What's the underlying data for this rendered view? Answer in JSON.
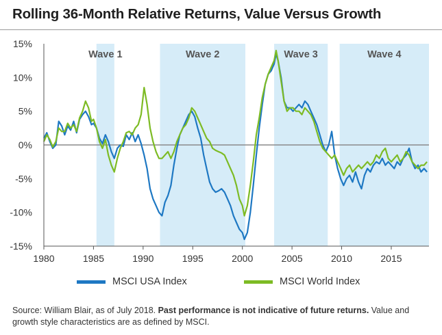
{
  "title": "Rolling 36-Month Relative Returns, Value Versus Growth",
  "source": {
    "prefix": "Source: William Blair, as of July 2018. ",
    "bold": "Past performance is not indicative of future returns.",
    "suffix": " Value and growth style characteristics are as defined by MSCI."
  },
  "colors": {
    "usa": "#1e78c3",
    "world": "#7dbb24",
    "wave_band": "#d6ecf8",
    "zero_line": "#8a8a8a"
  },
  "chart_data": {
    "type": "line",
    "title": "Rolling 36-Month Relative Returns, Value Versus Growth",
    "xlabel": "",
    "ylabel": "",
    "xlim": [
      1980,
      2018.8
    ],
    "ylim": [
      -15,
      15
    ],
    "x_ticks": [
      1980,
      1985,
      1990,
      1995,
      2000,
      2005,
      2010,
      2015
    ],
    "y_ticks": [
      {
        "value": 15,
        "label": "15%"
      },
      {
        "value": 10,
        "label": "10%"
      },
      {
        "value": 5,
        "label": "5%"
      },
      {
        "value": 0,
        "label": "0%"
      },
      {
        "value": -5,
        "label": "-5%"
      },
      {
        "value": -10,
        "label": "-10%"
      },
      {
        "value": -15,
        "label": "-15%"
      }
    ],
    "grid": false,
    "legend_position": "bottom",
    "waves": [
      {
        "label": "Wave 1",
        "start": 1985.3,
        "end": 1987.1
      },
      {
        "label": "Wave 2",
        "start": 1991.7,
        "end": 2000.3
      },
      {
        "label": "Wave 3",
        "start": 2003.2,
        "end": 2008.6
      },
      {
        "label": "Wave 4",
        "start": 2009.8,
        "end": 2018.8
      }
    ],
    "series": [
      {
        "name": "MSCI USA Index",
        "x": [
          1980.0,
          1980.3,
          1980.6,
          1980.9,
          1981.2,
          1981.5,
          1981.8,
          1982.1,
          1982.4,
          1982.7,
          1983.0,
          1983.3,
          1983.6,
          1983.9,
          1984.2,
          1984.5,
          1984.8,
          1985.0,
          1985.3,
          1985.6,
          1985.9,
          1986.2,
          1986.5,
          1986.8,
          1987.1,
          1987.4,
          1987.7,
          1988.0,
          1988.3,
          1988.6,
          1988.9,
          1989.2,
          1989.5,
          1989.8,
          1990.1,
          1990.4,
          1990.7,
          1991.0,
          1991.3,
          1991.6,
          1991.9,
          1992.2,
          1992.5,
          1992.8,
          1993.1,
          1993.4,
          1993.7,
          1994.0,
          1994.3,
          1994.6,
          1994.9,
          1995.2,
          1995.5,
          1995.8,
          1996.1,
          1996.4,
          1996.7,
          1997.0,
          1997.3,
          1997.6,
          1997.9,
          1998.2,
          1998.5,
          1998.8,
          1999.1,
          1999.4,
          1999.7,
          2000.0,
          2000.2,
          2000.5,
          2000.8,
          2001.1,
          2001.4,
          2001.7,
          2002.0,
          2002.3,
          2002.6,
          2002.9,
          2003.2,
          2003.4,
          2003.6,
          2003.9,
          2004.2,
          2004.5,
          2004.8,
          2005.1,
          2005.4,
          2005.7,
          2006.0,
          2006.3,
          2006.6,
          2006.9,
          2007.2,
          2007.5,
          2007.8,
          2008.1,
          2008.4,
          2008.7,
          2009.0,
          2009.3,
          2009.6,
          2009.9,
          2010.2,
          2010.5,
          2010.8,
          2011.1,
          2011.4,
          2011.7,
          2012.0,
          2012.3,
          2012.6,
          2012.9,
          2013.2,
          2013.5,
          2013.8,
          2014.1,
          2014.4,
          2014.7,
          2015.0,
          2015.3,
          2015.6,
          2015.9,
          2016.2,
          2016.5,
          2016.8,
          2017.1,
          2017.4,
          2017.7,
          2018.0,
          2018.3,
          2018.6
        ],
        "values": [
          1.0,
          1.8,
          0.5,
          -0.5,
          0.0,
          3.5,
          2.8,
          1.5,
          2.8,
          2.2,
          3.5,
          1.8,
          3.8,
          4.5,
          5.0,
          4.2,
          3.0,
          3.2,
          2.5,
          1.0,
          0.2,
          1.5,
          0.5,
          -1.0,
          -2.0,
          -0.5,
          0.0,
          -0.2,
          1.5,
          0.8,
          1.8,
          0.5,
          1.5,
          0.2,
          -1.5,
          -3.5,
          -6.5,
          -8.0,
          -9.0,
          -10.0,
          -10.5,
          -8.5,
          -7.5,
          -6.0,
          -3.0,
          -0.5,
          1.5,
          2.5,
          3.5,
          4.5,
          5.0,
          4.2,
          2.5,
          1.0,
          -1.5,
          -3.5,
          -5.5,
          -6.5,
          -7.0,
          -6.8,
          -6.5,
          -7.0,
          -8.0,
          -9.0,
          -10.5,
          -11.5,
          -12.5,
          -13.0,
          -14.0,
          -13.0,
          -10.0,
          -6.0,
          -1.5,
          2.5,
          6.0,
          9.0,
          10.5,
          11.0,
          12.0,
          13.5,
          12.5,
          10.0,
          6.5,
          5.5,
          5.5,
          5.0,
          5.5,
          6.0,
          5.5,
          6.5,
          6.0,
          5.0,
          4.0,
          3.0,
          1.5,
          0.0,
          -1.0,
          0.0,
          2.0,
          -1.5,
          -3.5,
          -5.0,
          -6.0,
          -5.0,
          -4.5,
          -5.5,
          -4.0,
          -5.5,
          -6.5,
          -4.5,
          -3.5,
          -4.0,
          -3.0,
          -2.5,
          -2.8,
          -2.0,
          -3.0,
          -2.5,
          -3.0,
          -3.5,
          -2.5,
          -3.0,
          -2.0,
          -1.5,
          -0.5,
          -2.5,
          -3.5,
          -3.0,
          -4.0,
          -3.5,
          -4.0
        ]
      },
      {
        "name": "MSCI World Index",
        "x": [
          1980.0,
          1980.3,
          1980.6,
          1980.9,
          1981.2,
          1981.5,
          1981.8,
          1982.1,
          1982.4,
          1982.7,
          1983.0,
          1983.3,
          1983.6,
          1983.9,
          1984.2,
          1984.5,
          1984.8,
          1985.0,
          1985.3,
          1985.6,
          1985.9,
          1986.2,
          1986.5,
          1986.8,
          1987.1,
          1987.4,
          1987.7,
          1988.0,
          1988.3,
          1988.6,
          1988.9,
          1989.2,
          1989.5,
          1989.8,
          1990.1,
          1990.4,
          1990.7,
          1991.0,
          1991.3,
          1991.6,
          1991.9,
          1992.2,
          1992.5,
          1992.8,
          1993.1,
          1993.4,
          1993.7,
          1994.0,
          1994.3,
          1994.6,
          1994.9,
          1995.2,
          1995.5,
          1995.8,
          1996.1,
          1996.4,
          1996.7,
          1997.0,
          1997.3,
          1997.6,
          1997.9,
          1998.2,
          1998.5,
          1998.8,
          1999.1,
          1999.4,
          1999.7,
          2000.0,
          2000.2,
          2000.5,
          2000.8,
          2001.1,
          2001.4,
          2001.7,
          2002.0,
          2002.3,
          2002.6,
          2002.9,
          2003.2,
          2003.4,
          2003.6,
          2003.9,
          2004.2,
          2004.5,
          2004.8,
          2005.1,
          2005.4,
          2005.7,
          2006.0,
          2006.3,
          2006.6,
          2006.9,
          2007.2,
          2007.5,
          2007.8,
          2008.1,
          2008.4,
          2008.7,
          2009.0,
          2009.3,
          2009.6,
          2009.9,
          2010.2,
          2010.5,
          2010.8,
          2011.1,
          2011.4,
          2011.7,
          2012.0,
          2012.3,
          2012.6,
          2012.9,
          2013.2,
          2013.5,
          2013.8,
          2014.1,
          2014.4,
          2014.7,
          2015.0,
          2015.3,
          2015.6,
          2015.9,
          2016.2,
          2016.5,
          2016.8,
          2017.1,
          2017.4,
          2017.7,
          2018.0,
          2018.3,
          2018.6
        ],
        "values": [
          0.5,
          1.5,
          0.8,
          -0.3,
          0.5,
          2.5,
          2.0,
          2.0,
          3.2,
          2.5,
          3.0,
          2.0,
          4.0,
          5.0,
          6.5,
          5.5,
          3.5,
          3.8,
          2.5,
          0.5,
          -0.5,
          0.8,
          -1.5,
          -3.0,
          -4.0,
          -2.0,
          -0.5,
          0.5,
          1.8,
          2.0,
          1.5,
          2.5,
          3.0,
          4.5,
          8.5,
          6.0,
          2.5,
          0.5,
          -1.0,
          -2.0,
          -2.0,
          -1.5,
          -1.0,
          -2.0,
          -1.0,
          0.5,
          1.5,
          2.5,
          3.0,
          4.0,
          5.5,
          5.0,
          4.0,
          3.0,
          2.0,
          1.0,
          0.5,
          -0.5,
          -0.8,
          -1.0,
          -1.2,
          -1.5,
          -2.5,
          -3.5,
          -4.5,
          -6.0,
          -8.0,
          -9.0,
          -10.5,
          -9.0,
          -6.0,
          -2.5,
          1.5,
          4.0,
          7.0,
          9.0,
          10.5,
          11.5,
          12.5,
          14.0,
          12.5,
          9.5,
          6.5,
          5.0,
          5.5,
          5.5,
          5.0,
          5.0,
          4.5,
          5.5,
          5.0,
          4.5,
          3.5,
          2.0,
          0.5,
          -0.5,
          -1.0,
          -1.5,
          -2.0,
          -1.5,
          -2.5,
          -3.5,
          -4.5,
          -3.5,
          -3.0,
          -4.0,
          -3.5,
          -3.0,
          -3.5,
          -3.0,
          -2.5,
          -3.0,
          -2.5,
          -1.5,
          -2.0,
          -1.0,
          -0.5,
          -2.0,
          -2.5,
          -2.0,
          -1.5,
          -2.5,
          -2.0,
          -1.0,
          -1.5,
          -2.5,
          -3.0,
          -3.5,
          -3.0,
          -3.0,
          -2.5
        ]
      }
    ]
  }
}
